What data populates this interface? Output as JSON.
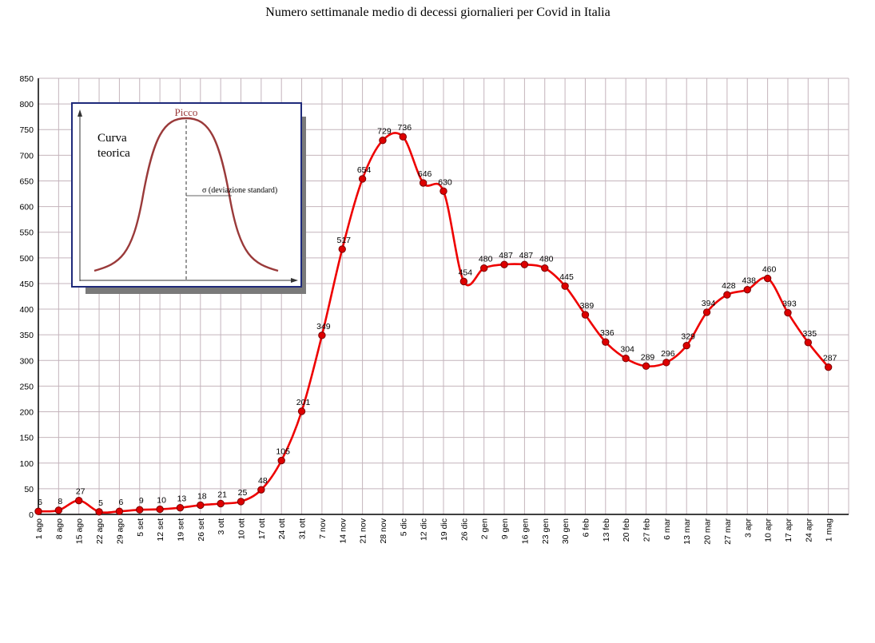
{
  "chart_data": {
    "type": "line",
    "title": "Numero settimanale medio di decessi giornalieri per Covid in Italia",
    "categories": [
      "1 ago",
      "8 ago",
      "15 ago",
      "22 ago",
      "29 ago",
      "5 set",
      "12 set",
      "19 set",
      "26 set",
      "3 ott",
      "10 ott",
      "17 ott",
      "24 ott",
      "31 ott",
      "7 nov",
      "14 nov",
      "21 nov",
      "28 nov",
      "5 dic",
      "12 dic",
      "19 dic",
      "26 dic",
      "2 gen",
      "9 gen",
      "16 gen",
      "23 gen",
      "30 gen",
      "6 feb",
      "13 feb",
      "20 feb",
      "27 feb",
      "6 mar",
      "13 mar",
      "20 mar",
      "27 mar",
      "3 apr",
      "10 apr",
      "17 apr",
      "24 apr",
      "1 mag"
    ],
    "series": [
      {
        "values": [
          6,
          8,
          27,
          5,
          6,
          9,
          10,
          13,
          18,
          21,
          25,
          48,
          105,
          201,
          349,
          517,
          654,
          729,
          736,
          646,
          630,
          454,
          480,
          487,
          487,
          480,
          445,
          389,
          336,
          304,
          289,
          296,
          329,
          394,
          428,
          438,
          460,
          393,
          335,
          287
        ],
        "color": "#ee0000"
      }
    ],
    "data_labels": [
      "6",
      "8",
      "27",
      "5",
      "6",
      "9",
      "10",
      "13",
      "18",
      "21",
      "25",
      "48",
      "105",
      "201",
      "349",
      "517",
      "654",
      "729",
      "736",
      "646",
      "630",
      "454",
      "480",
      "487",
      "487",
      "480",
      "445",
      "389",
      "336",
      "304",
      "289",
      "296",
      "329",
      "394",
      "428",
      "438",
      "460",
      "393",
      "335",
      "287"
    ],
    "ylim": [
      0,
      850
    ],
    "y_ticks": [
      "0",
      "50",
      "100",
      "150",
      "200",
      "250",
      "300",
      "350",
      "400",
      "450",
      "500",
      "550",
      "600",
      "650",
      "700",
      "750",
      "800",
      "850"
    ],
    "grid": true,
    "colors": {
      "line": "#ee0000",
      "marker": "#dd0000",
      "grid": "#c4b4bc",
      "inset_border": "#1f2a7a",
      "inset_shadow": "#7a7a7a",
      "inset_curve": "#9a3a3a"
    }
  },
  "inset": {
    "title_line1": "Curva",
    "title_line2": "teorica",
    "peak_label": "Picco",
    "sigma_label": "σ  (deviazione standard)"
  }
}
